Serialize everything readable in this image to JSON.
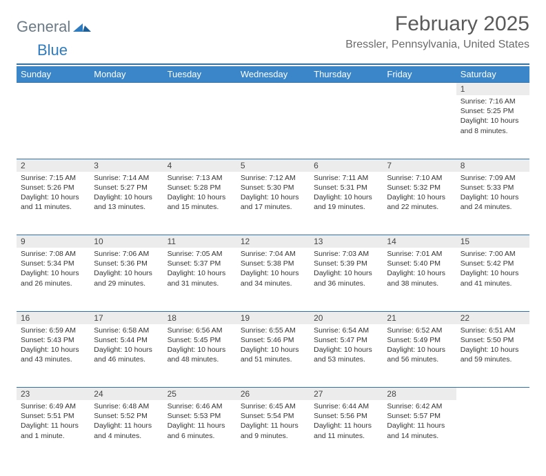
{
  "brand": {
    "part1": "General",
    "part2": "Blue"
  },
  "title": "February 2025",
  "location": "Bressler, Pennsylvania, United States",
  "colors": {
    "header_bar": "#3a86c8",
    "divider": "#2f6fa8",
    "daynum_bg": "#ececec",
    "text": "#333333",
    "logo_gray": "#6b7a84",
    "logo_blue": "#2f7bbf"
  },
  "weekdays": [
    "Sunday",
    "Monday",
    "Tuesday",
    "Wednesday",
    "Thursday",
    "Friday",
    "Saturday"
  ],
  "weeks": [
    [
      null,
      null,
      null,
      null,
      null,
      null,
      {
        "n": "1",
        "sunrise": "Sunrise: 7:16 AM",
        "sunset": "Sunset: 5:25 PM",
        "daylight": "Daylight: 10 hours and 8 minutes."
      }
    ],
    [
      {
        "n": "2",
        "sunrise": "Sunrise: 7:15 AM",
        "sunset": "Sunset: 5:26 PM",
        "daylight": "Daylight: 10 hours and 11 minutes."
      },
      {
        "n": "3",
        "sunrise": "Sunrise: 7:14 AM",
        "sunset": "Sunset: 5:27 PM",
        "daylight": "Daylight: 10 hours and 13 minutes."
      },
      {
        "n": "4",
        "sunrise": "Sunrise: 7:13 AM",
        "sunset": "Sunset: 5:28 PM",
        "daylight": "Daylight: 10 hours and 15 minutes."
      },
      {
        "n": "5",
        "sunrise": "Sunrise: 7:12 AM",
        "sunset": "Sunset: 5:30 PM",
        "daylight": "Daylight: 10 hours and 17 minutes."
      },
      {
        "n": "6",
        "sunrise": "Sunrise: 7:11 AM",
        "sunset": "Sunset: 5:31 PM",
        "daylight": "Daylight: 10 hours and 19 minutes."
      },
      {
        "n": "7",
        "sunrise": "Sunrise: 7:10 AM",
        "sunset": "Sunset: 5:32 PM",
        "daylight": "Daylight: 10 hours and 22 minutes."
      },
      {
        "n": "8",
        "sunrise": "Sunrise: 7:09 AM",
        "sunset": "Sunset: 5:33 PM",
        "daylight": "Daylight: 10 hours and 24 minutes."
      }
    ],
    [
      {
        "n": "9",
        "sunrise": "Sunrise: 7:08 AM",
        "sunset": "Sunset: 5:34 PM",
        "daylight": "Daylight: 10 hours and 26 minutes."
      },
      {
        "n": "10",
        "sunrise": "Sunrise: 7:06 AM",
        "sunset": "Sunset: 5:36 PM",
        "daylight": "Daylight: 10 hours and 29 minutes."
      },
      {
        "n": "11",
        "sunrise": "Sunrise: 7:05 AM",
        "sunset": "Sunset: 5:37 PM",
        "daylight": "Daylight: 10 hours and 31 minutes."
      },
      {
        "n": "12",
        "sunrise": "Sunrise: 7:04 AM",
        "sunset": "Sunset: 5:38 PM",
        "daylight": "Daylight: 10 hours and 34 minutes."
      },
      {
        "n": "13",
        "sunrise": "Sunrise: 7:03 AM",
        "sunset": "Sunset: 5:39 PM",
        "daylight": "Daylight: 10 hours and 36 minutes."
      },
      {
        "n": "14",
        "sunrise": "Sunrise: 7:01 AM",
        "sunset": "Sunset: 5:40 PM",
        "daylight": "Daylight: 10 hours and 38 minutes."
      },
      {
        "n": "15",
        "sunrise": "Sunrise: 7:00 AM",
        "sunset": "Sunset: 5:42 PM",
        "daylight": "Daylight: 10 hours and 41 minutes."
      }
    ],
    [
      {
        "n": "16",
        "sunrise": "Sunrise: 6:59 AM",
        "sunset": "Sunset: 5:43 PM",
        "daylight": "Daylight: 10 hours and 43 minutes."
      },
      {
        "n": "17",
        "sunrise": "Sunrise: 6:58 AM",
        "sunset": "Sunset: 5:44 PM",
        "daylight": "Daylight: 10 hours and 46 minutes."
      },
      {
        "n": "18",
        "sunrise": "Sunrise: 6:56 AM",
        "sunset": "Sunset: 5:45 PM",
        "daylight": "Daylight: 10 hours and 48 minutes."
      },
      {
        "n": "19",
        "sunrise": "Sunrise: 6:55 AM",
        "sunset": "Sunset: 5:46 PM",
        "daylight": "Daylight: 10 hours and 51 minutes."
      },
      {
        "n": "20",
        "sunrise": "Sunrise: 6:54 AM",
        "sunset": "Sunset: 5:47 PM",
        "daylight": "Daylight: 10 hours and 53 minutes."
      },
      {
        "n": "21",
        "sunrise": "Sunrise: 6:52 AM",
        "sunset": "Sunset: 5:49 PM",
        "daylight": "Daylight: 10 hours and 56 minutes."
      },
      {
        "n": "22",
        "sunrise": "Sunrise: 6:51 AM",
        "sunset": "Sunset: 5:50 PM",
        "daylight": "Daylight: 10 hours and 59 minutes."
      }
    ],
    [
      {
        "n": "23",
        "sunrise": "Sunrise: 6:49 AM",
        "sunset": "Sunset: 5:51 PM",
        "daylight": "Daylight: 11 hours and 1 minute."
      },
      {
        "n": "24",
        "sunrise": "Sunrise: 6:48 AM",
        "sunset": "Sunset: 5:52 PM",
        "daylight": "Daylight: 11 hours and 4 minutes."
      },
      {
        "n": "25",
        "sunrise": "Sunrise: 6:46 AM",
        "sunset": "Sunset: 5:53 PM",
        "daylight": "Daylight: 11 hours and 6 minutes."
      },
      {
        "n": "26",
        "sunrise": "Sunrise: 6:45 AM",
        "sunset": "Sunset: 5:54 PM",
        "daylight": "Daylight: 11 hours and 9 minutes."
      },
      {
        "n": "27",
        "sunrise": "Sunrise: 6:44 AM",
        "sunset": "Sunset: 5:56 PM",
        "daylight": "Daylight: 11 hours and 11 minutes."
      },
      {
        "n": "28",
        "sunrise": "Sunrise: 6:42 AM",
        "sunset": "Sunset: 5:57 PM",
        "daylight": "Daylight: 11 hours and 14 minutes."
      },
      null
    ]
  ]
}
